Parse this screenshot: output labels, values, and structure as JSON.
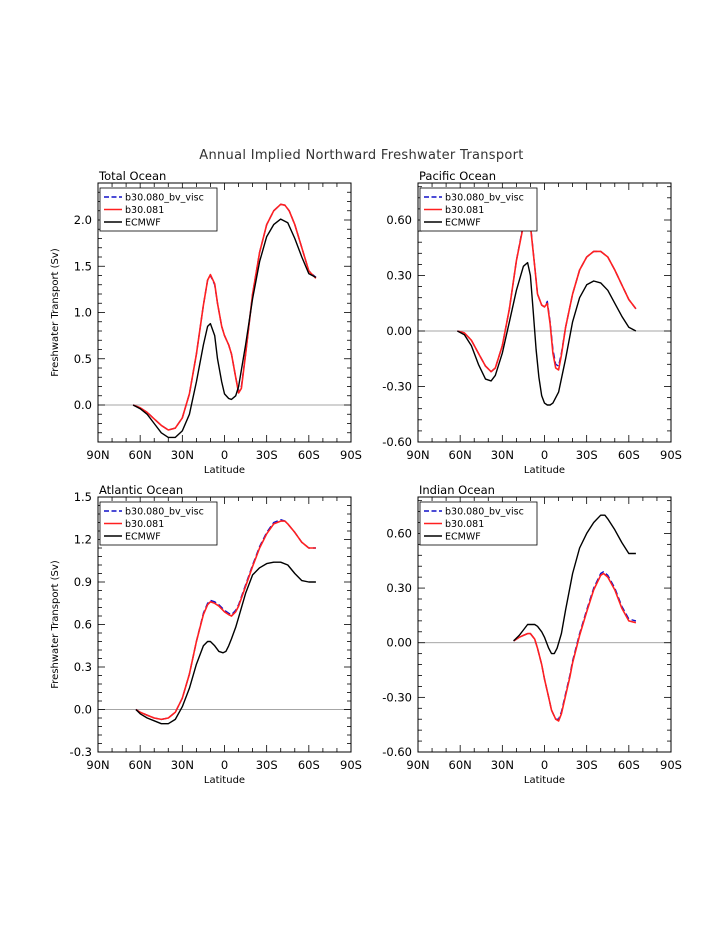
{
  "title": "Annual Implied Northward Freshwater Transport",
  "colors": {
    "b30.080_bv_visc": "#1010c8",
    "b30.081": "#ff2020",
    "ECMWF": "#000000",
    "zero_line": "#888888"
  },
  "legend_labels": [
    "b30.080_bv_visc",
    "b30.081",
    "ECMWF"
  ],
  "x_tick_labels": [
    "90N",
    "60N",
    "30N",
    "0",
    "30S",
    "60S",
    "90S"
  ],
  "x_ticks": [
    -90,
    -60,
    -30,
    0,
    30,
    60,
    90
  ],
  "chart_data": [
    {
      "type": "line",
      "panel_title": "Total Ocean",
      "xlabel": "Latitude",
      "ylabel": "Freshwater Transport (Sv)",
      "xlim": [
        -90,
        90
      ],
      "ylim": [
        -0.4,
        2.4
      ],
      "y_ticks": [
        0.0,
        0.5,
        1.0,
        1.5,
        2.0
      ],
      "y_tick_labels": [
        "0.0",
        "0.5",
        "1.0",
        "1.5",
        "2.0"
      ],
      "legend_position": "top-left",
      "series": [
        {
          "name": "b30.080_bv_visc",
          "x": [
            -65,
            -60,
            -55,
            -50,
            -45,
            -40,
            -35,
            -30,
            -25,
            -20,
            -15,
            -12,
            -10,
            -7,
            -5,
            -2,
            0,
            3,
            5,
            8,
            10,
            12,
            15,
            20,
            25,
            30,
            35,
            40,
            43,
            46,
            50,
            55,
            60,
            65
          ],
          "y": [
            0,
            -0.03,
            -0.08,
            -0.15,
            -0.22,
            -0.27,
            -0.25,
            -0.14,
            0.12,
            0.55,
            1.08,
            1.35,
            1.4,
            1.3,
            1.1,
            0.85,
            0.75,
            0.65,
            0.55,
            0.3,
            0.15,
            0.2,
            0.55,
            1.2,
            1.65,
            1.95,
            2.1,
            2.17,
            2.16,
            2.1,
            1.95,
            1.7,
            1.45,
            1.38
          ]
        },
        {
          "name": "b30.081",
          "x": [
            -65,
            -60,
            -55,
            -50,
            -45,
            -40,
            -35,
            -30,
            -25,
            -20,
            -15,
            -12,
            -10,
            -7,
            -5,
            -2,
            0,
            3,
            5,
            8,
            10,
            12,
            15,
            20,
            25,
            30,
            35,
            40,
            43,
            46,
            50,
            55,
            60,
            65
          ],
          "y": [
            0,
            -0.03,
            -0.08,
            -0.15,
            -0.22,
            -0.27,
            -0.25,
            -0.14,
            0.12,
            0.55,
            1.08,
            1.35,
            1.41,
            1.31,
            1.1,
            0.85,
            0.75,
            0.65,
            0.55,
            0.3,
            0.13,
            0.18,
            0.55,
            1.2,
            1.65,
            1.95,
            2.1,
            2.17,
            2.16,
            2.1,
            1.95,
            1.7,
            1.45,
            1.37
          ]
        },
        {
          "name": "ECMWF",
          "x": [
            -65,
            -60,
            -55,
            -50,
            -45,
            -40,
            -35,
            -30,
            -25,
            -20,
            -15,
            -12,
            -10,
            -7,
            -5,
            -2,
            0,
            3,
            5,
            8,
            10,
            15,
            20,
            25,
            30,
            35,
            40,
            45,
            50,
            55,
            60,
            65
          ],
          "y": [
            0,
            -0.04,
            -0.1,
            -0.2,
            -0.3,
            -0.35,
            -0.35,
            -0.28,
            -0.1,
            0.25,
            0.65,
            0.85,
            0.88,
            0.75,
            0.5,
            0.25,
            0.12,
            0.07,
            0.06,
            0.1,
            0.2,
            0.65,
            1.15,
            1.55,
            1.82,
            1.95,
            2.01,
            1.97,
            1.8,
            1.6,
            1.42,
            1.38
          ]
        }
      ]
    },
    {
      "type": "line",
      "panel_title": "Pacific Ocean",
      "xlabel": "Latitude",
      "ylabel": "",
      "xlim": [
        -90,
        90
      ],
      "ylim": [
        -0.6,
        0.8
      ],
      "y_ticks": [
        -0.6,
        -0.3,
        0.0,
        0.3,
        0.6
      ],
      "y_tick_labels": [
        "-0.60",
        "-0.30",
        "0.00",
        "0.30",
        "0.60"
      ],
      "legend_position": "top-left",
      "series": [
        {
          "name": "b30.080_bv_visc",
          "x": [
            -62,
            -57,
            -52,
            -47,
            -42,
            -38,
            -35,
            -30,
            -25,
            -20,
            -15,
            -12,
            -10,
            -7,
            -5,
            -2,
            0,
            2,
            4,
            6,
            8,
            10,
            12,
            15,
            20,
            25,
            30,
            35,
            40,
            45,
            50,
            55,
            60,
            65
          ],
          "y": [
            0,
            -0.01,
            -0.05,
            -0.12,
            -0.19,
            -0.22,
            -0.2,
            -0.08,
            0.12,
            0.38,
            0.58,
            0.65,
            0.58,
            0.35,
            0.2,
            0.14,
            0.13,
            0.16,
            0.05,
            -0.1,
            -0.18,
            -0.19,
            -0.12,
            0.02,
            0.2,
            0.33,
            0.4,
            0.43,
            0.43,
            0.4,
            0.33,
            0.25,
            0.17,
            0.12
          ]
        },
        {
          "name": "b30.081",
          "x": [
            -62,
            -57,
            -52,
            -47,
            -42,
            -38,
            -35,
            -30,
            -25,
            -20,
            -15,
            -12,
            -10,
            -7,
            -5,
            -2,
            0,
            2,
            4,
            6,
            8,
            10,
            12,
            15,
            20,
            25,
            30,
            35,
            40,
            45,
            50,
            55,
            60,
            65
          ],
          "y": [
            0,
            -0.01,
            -0.05,
            -0.12,
            -0.19,
            -0.22,
            -0.2,
            -0.08,
            0.12,
            0.38,
            0.57,
            0.62,
            0.57,
            0.35,
            0.2,
            0.14,
            0.13,
            0.15,
            0.04,
            -0.12,
            -0.2,
            -0.21,
            -0.13,
            0.02,
            0.2,
            0.33,
            0.4,
            0.43,
            0.43,
            0.4,
            0.33,
            0.25,
            0.17,
            0.12
          ]
        },
        {
          "name": "ECMWF",
          "x": [
            -62,
            -57,
            -52,
            -47,
            -42,
            -38,
            -35,
            -30,
            -25,
            -20,
            -15,
            -12,
            -10,
            -8,
            -6,
            -4,
            -2,
            0,
            2,
            4,
            6,
            10,
            15,
            20,
            25,
            30,
            35,
            40,
            45,
            50,
            55,
            60,
            65
          ],
          "y": [
            0,
            -0.02,
            -0.08,
            -0.18,
            -0.26,
            -0.27,
            -0.24,
            -0.12,
            0.05,
            0.22,
            0.35,
            0.37,
            0.3,
            0.1,
            -0.1,
            -0.25,
            -0.35,
            -0.39,
            -0.4,
            -0.4,
            -0.39,
            -0.33,
            -0.15,
            0.05,
            0.18,
            0.25,
            0.27,
            0.26,
            0.22,
            0.15,
            0.08,
            0.02,
            0.0
          ]
        }
      ]
    },
    {
      "type": "line",
      "panel_title": "Atlantic Ocean",
      "xlabel": "Latitude",
      "ylabel": "Freshwater Transport (Sv)",
      "xlim": [
        -90,
        90
      ],
      "ylim": [
        -0.3,
        1.5
      ],
      "y_ticks": [
        -0.3,
        0.0,
        0.3,
        0.6,
        0.9,
        1.2,
        1.5
      ],
      "y_tick_labels": [
        "-0.3",
        "0.0",
        "0.3",
        "0.6",
        "0.9",
        "1.2",
        "1.5"
      ],
      "legend_position": "top-left",
      "series": [
        {
          "name": "b30.080_bv_visc",
          "x": [
            -63,
            -60,
            -55,
            -50,
            -45,
            -40,
            -35,
            -30,
            -25,
            -20,
            -15,
            -12,
            -10,
            -7,
            -4,
            0,
            3,
            5,
            8,
            10,
            15,
            20,
            25,
            30,
            35,
            40,
            43,
            45,
            50,
            55,
            60,
            65
          ],
          "y": [
            0,
            -0.02,
            -0.04,
            -0.06,
            -0.07,
            -0.06,
            -0.02,
            0.08,
            0.25,
            0.48,
            0.68,
            0.75,
            0.77,
            0.76,
            0.74,
            0.7,
            0.68,
            0.67,
            0.7,
            0.74,
            0.88,
            1.02,
            1.15,
            1.25,
            1.32,
            1.34,
            1.33,
            1.31,
            1.25,
            1.18,
            1.14,
            1.14
          ]
        },
        {
          "name": "b30.081",
          "x": [
            -63,
            -60,
            -55,
            -50,
            -45,
            -40,
            -35,
            -30,
            -25,
            -20,
            -15,
            -12,
            -10,
            -7,
            -4,
            0,
            3,
            5,
            8,
            10,
            15,
            20,
            25,
            30,
            35,
            40,
            43,
            45,
            50,
            55,
            60,
            65
          ],
          "y": [
            0,
            -0.02,
            -0.04,
            -0.06,
            -0.07,
            -0.06,
            -0.02,
            0.08,
            0.25,
            0.48,
            0.67,
            0.74,
            0.76,
            0.75,
            0.73,
            0.69,
            0.67,
            0.66,
            0.69,
            0.73,
            0.87,
            1.01,
            1.14,
            1.24,
            1.31,
            1.33,
            1.33,
            1.31,
            1.25,
            1.18,
            1.14,
            1.14
          ]
        },
        {
          "name": "ECMWF",
          "x": [
            -63,
            -60,
            -55,
            -50,
            -45,
            -40,
            -35,
            -30,
            -25,
            -20,
            -15,
            -12,
            -10,
            -7,
            -4,
            -1,
            1,
            3,
            5,
            8,
            10,
            15,
            20,
            25,
            30,
            35,
            40,
            45,
            50,
            55,
            60,
            65
          ],
          "y": [
            0,
            -0.03,
            -0.06,
            -0.08,
            -0.1,
            -0.1,
            -0.07,
            0.02,
            0.15,
            0.32,
            0.45,
            0.48,
            0.48,
            0.45,
            0.41,
            0.4,
            0.41,
            0.45,
            0.5,
            0.58,
            0.65,
            0.82,
            0.95,
            1.0,
            1.03,
            1.04,
            1.04,
            1.02,
            0.96,
            0.91,
            0.9,
            0.9
          ]
        }
      ]
    },
    {
      "type": "line",
      "panel_title": "Indian Ocean",
      "xlabel": "Latitude",
      "ylabel": "",
      "xlim": [
        -90,
        90
      ],
      "ylim": [
        -0.6,
        0.8
      ],
      "y_ticks": [
        -0.6,
        -0.3,
        0.0,
        0.3,
        0.6
      ],
      "y_tick_labels": [
        "-0.60",
        "-0.30",
        "0.00",
        "0.30",
        "0.60"
      ],
      "legend_position": "top-left",
      "series": [
        {
          "name": "b30.080_bv_visc",
          "x": [
            -22,
            -18,
            -15,
            -12,
            -10,
            -7,
            -5,
            -2,
            0,
            3,
            5,
            8,
            10,
            12,
            15,
            18,
            20,
            25,
            30,
            35,
            40,
            42,
            45,
            50,
            55,
            60,
            65
          ],
          "y": [
            0.01,
            0.03,
            0.04,
            0.05,
            0.05,
            0.02,
            -0.03,
            -0.12,
            -0.2,
            -0.3,
            -0.37,
            -0.42,
            -0.42,
            -0.38,
            -0.28,
            -0.18,
            -0.1,
            0.05,
            0.18,
            0.3,
            0.38,
            0.39,
            0.37,
            0.3,
            0.2,
            0.13,
            0.12
          ]
        },
        {
          "name": "b30.081",
          "x": [
            -22,
            -18,
            -15,
            -12,
            -10,
            -7,
            -5,
            -2,
            0,
            3,
            5,
            8,
            10,
            12,
            15,
            18,
            20,
            25,
            30,
            35,
            40,
            42,
            45,
            50,
            55,
            60,
            65
          ],
          "y": [
            0.01,
            0.03,
            0.04,
            0.05,
            0.05,
            0.02,
            -0.03,
            -0.12,
            -0.2,
            -0.3,
            -0.37,
            -0.42,
            -0.43,
            -0.39,
            -0.29,
            -0.19,
            -0.11,
            0.04,
            0.17,
            0.29,
            0.37,
            0.38,
            0.36,
            0.29,
            0.19,
            0.12,
            0.11
          ]
        },
        {
          "name": "ECMWF",
          "x": [
            -22,
            -18,
            -15,
            -12,
            -10,
            -7,
            -5,
            -2,
            0,
            3,
            5,
            7,
            9,
            12,
            15,
            18,
            20,
            25,
            30,
            35,
            40,
            43,
            45,
            50,
            55,
            60,
            65
          ],
          "y": [
            0.01,
            0.04,
            0.07,
            0.1,
            0.1,
            0.1,
            0.09,
            0.06,
            0.03,
            -0.03,
            -0.06,
            -0.06,
            -0.03,
            0.05,
            0.18,
            0.3,
            0.38,
            0.52,
            0.6,
            0.66,
            0.7,
            0.7,
            0.68,
            0.62,
            0.55,
            0.49,
            0.49
          ]
        }
      ]
    }
  ]
}
